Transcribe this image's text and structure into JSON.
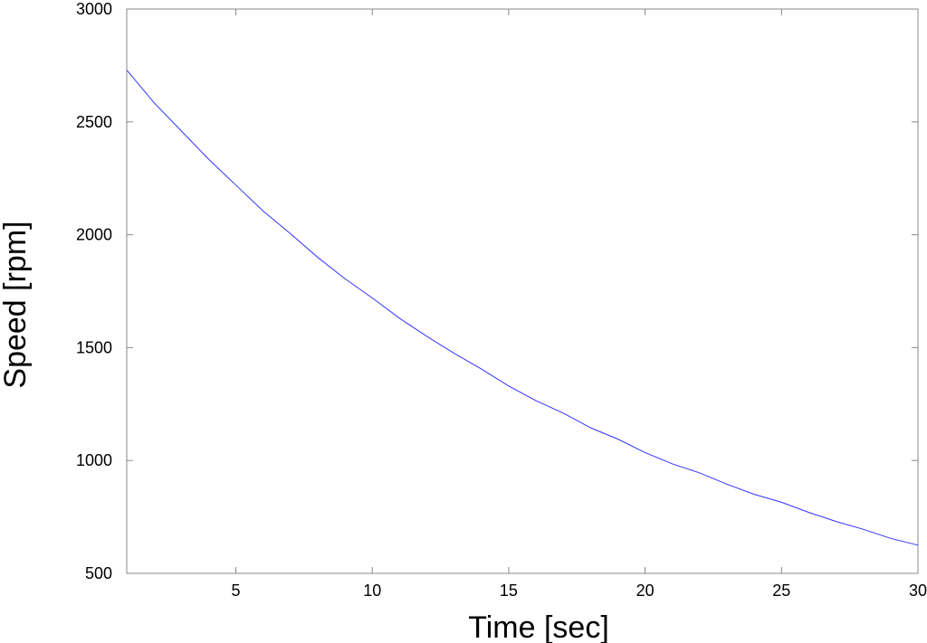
{
  "chart_data": {
    "type": "line",
    "title": "",
    "xlabel": "Time [sec]",
    "ylabel": "Speed [rpm]",
    "xlim": [
      1,
      30
    ],
    "ylim": [
      500,
      3000
    ],
    "x_ticks": [
      5,
      10,
      15,
      20,
      25,
      30
    ],
    "y_ticks": [
      500,
      1000,
      1500,
      2000,
      2500,
      3000
    ],
    "grid": false,
    "legend": "none",
    "line_color": "#3333ff",
    "series": [
      {
        "x": [
          1,
          2,
          3,
          4,
          5,
          6,
          7,
          8,
          9,
          10,
          11,
          12,
          13,
          14,
          15,
          16,
          17,
          18,
          19,
          20,
          21,
          22,
          23,
          24,
          25,
          26,
          27,
          28,
          29,
          30
        ],
        "values": [
          2730,
          2585,
          2460,
          2335,
          2220,
          2105,
          2005,
          1900,
          1805,
          1720,
          1630,
          1550,
          1475,
          1405,
          1330,
          1265,
          1210,
          1145,
          1095,
          1035,
          985,
          945,
          895,
          850,
          815,
          770,
          730,
          695,
          655,
          625
        ]
      }
    ]
  }
}
